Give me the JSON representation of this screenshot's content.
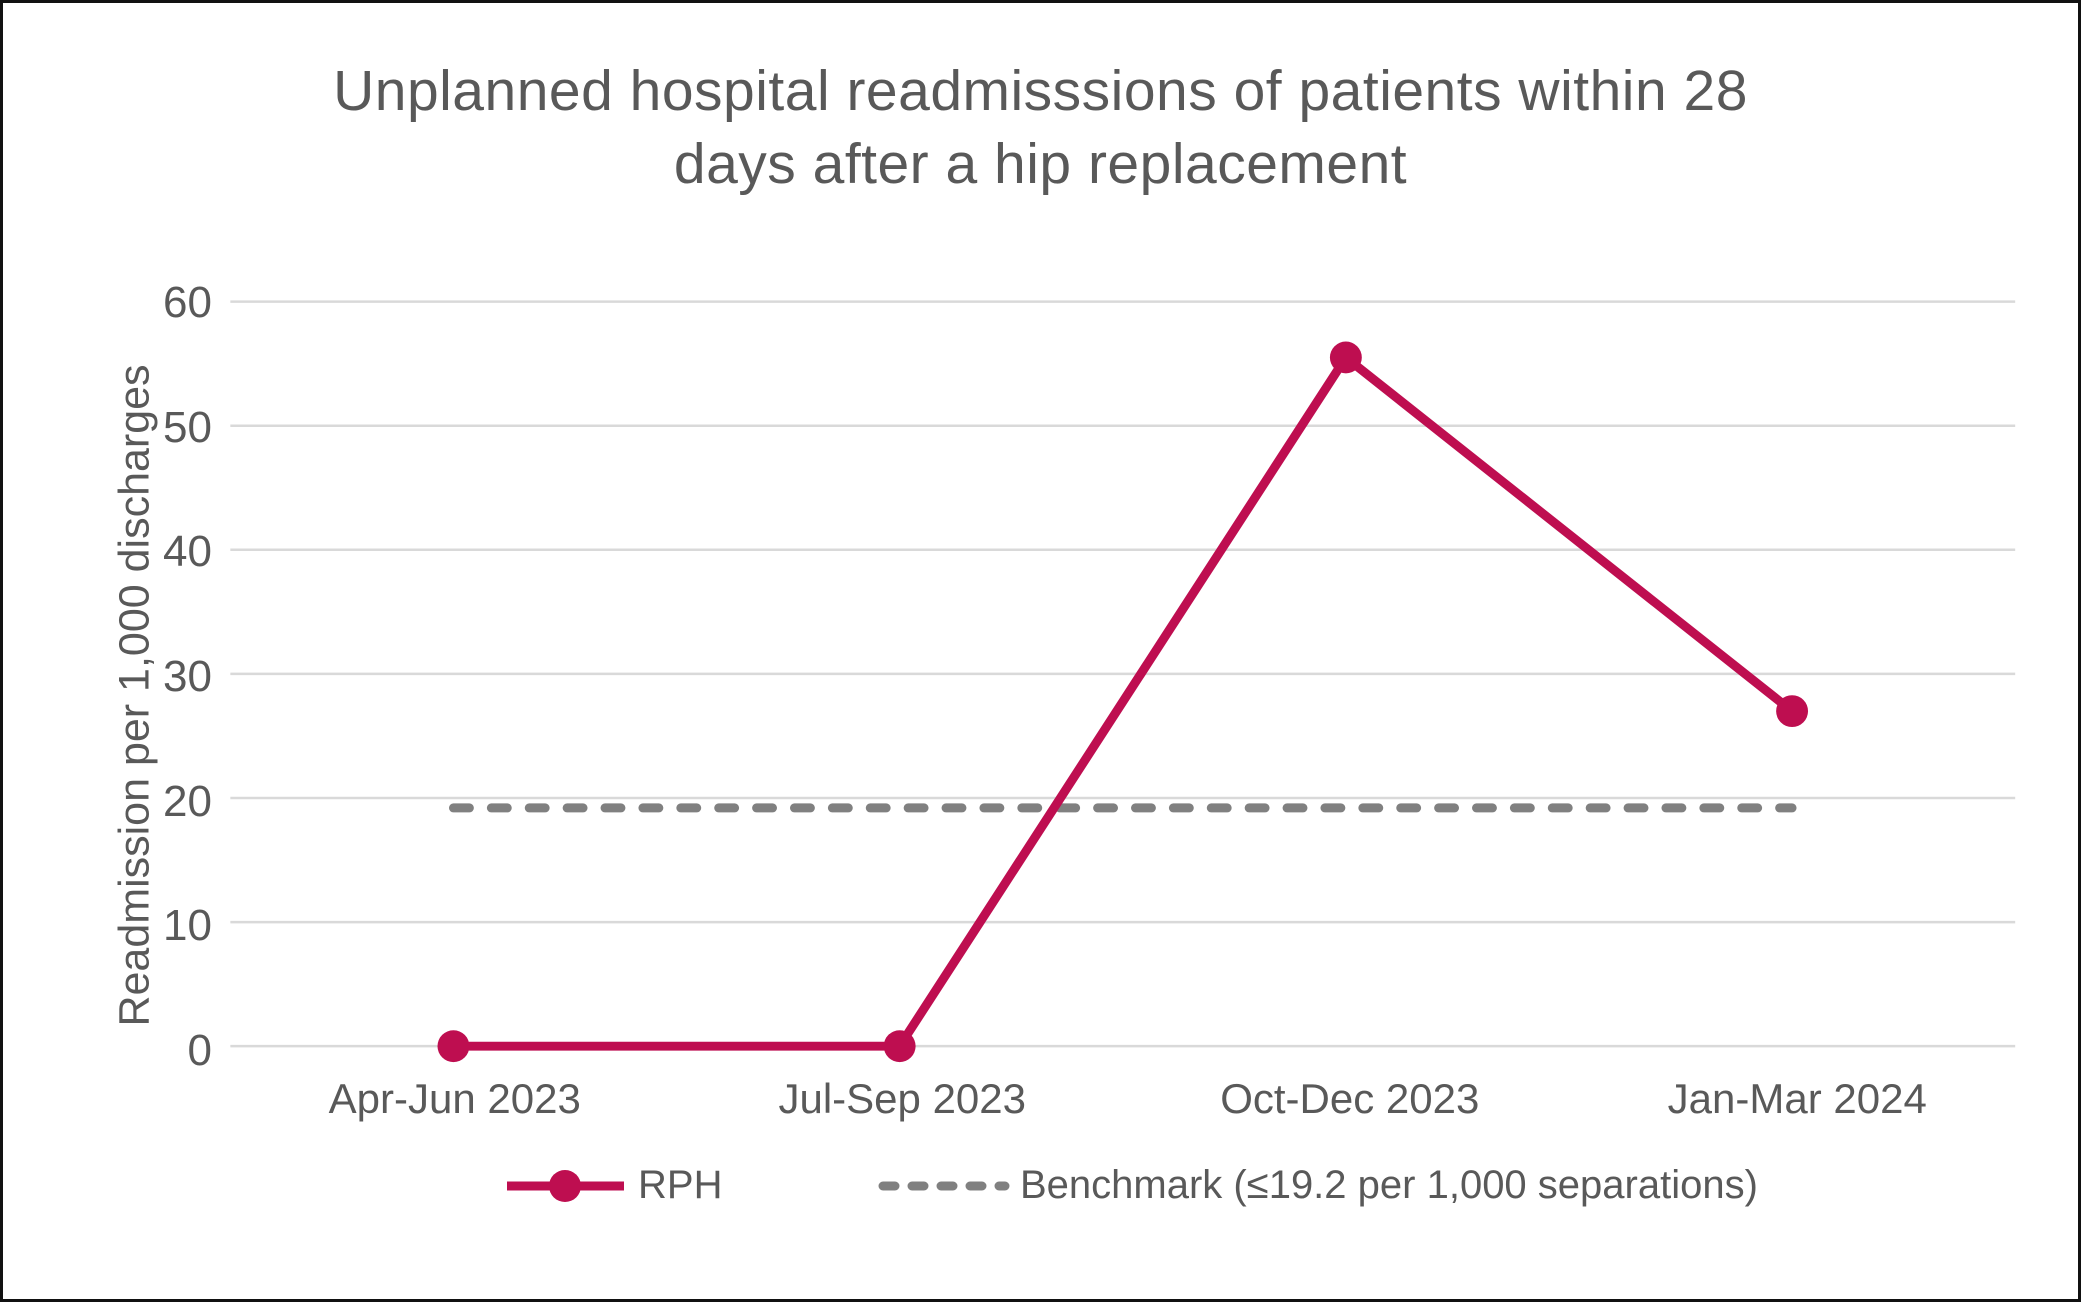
{
  "chart_data": {
    "type": "line",
    "title": "Unplanned hospital readmisssions of patients within 28 days after a hip replacement",
    "title_lines": [
      "Unplanned hospital readmisssions of patients within 28",
      "days after a hip replacement"
    ],
    "xlabel": "",
    "ylabel": "Readmission per 1,000 discharges",
    "categories": [
      "Apr-Jun 2023",
      "Jul-Sep 2023",
      "Oct-Dec 2023",
      "Jan-Mar 2024"
    ],
    "series": [
      {
        "name": "RPH",
        "style": "solid-with-markers",
        "color": "#BE0E50",
        "values": [
          0,
          0,
          55.5,
          27
        ]
      },
      {
        "name": "Benchmark (≤19.2 per 1,000 separations)",
        "style": "dashed",
        "color": "#808080",
        "values": [
          19.2,
          19.2,
          19.2,
          19.2
        ]
      }
    ],
    "benchmark_value": 19.2,
    "ylim": [
      0,
      60
    ],
    "yticks": [
      0,
      10,
      20,
      30,
      40,
      50,
      60
    ],
    "grid": true,
    "legend_position": "bottom"
  },
  "colors": {
    "text": "#595959",
    "gridline": "#D9D9D9",
    "rph": "#BE0E50",
    "benchmark": "#808080",
    "frame_border": "#111111",
    "background": "#FFFFFF"
  }
}
